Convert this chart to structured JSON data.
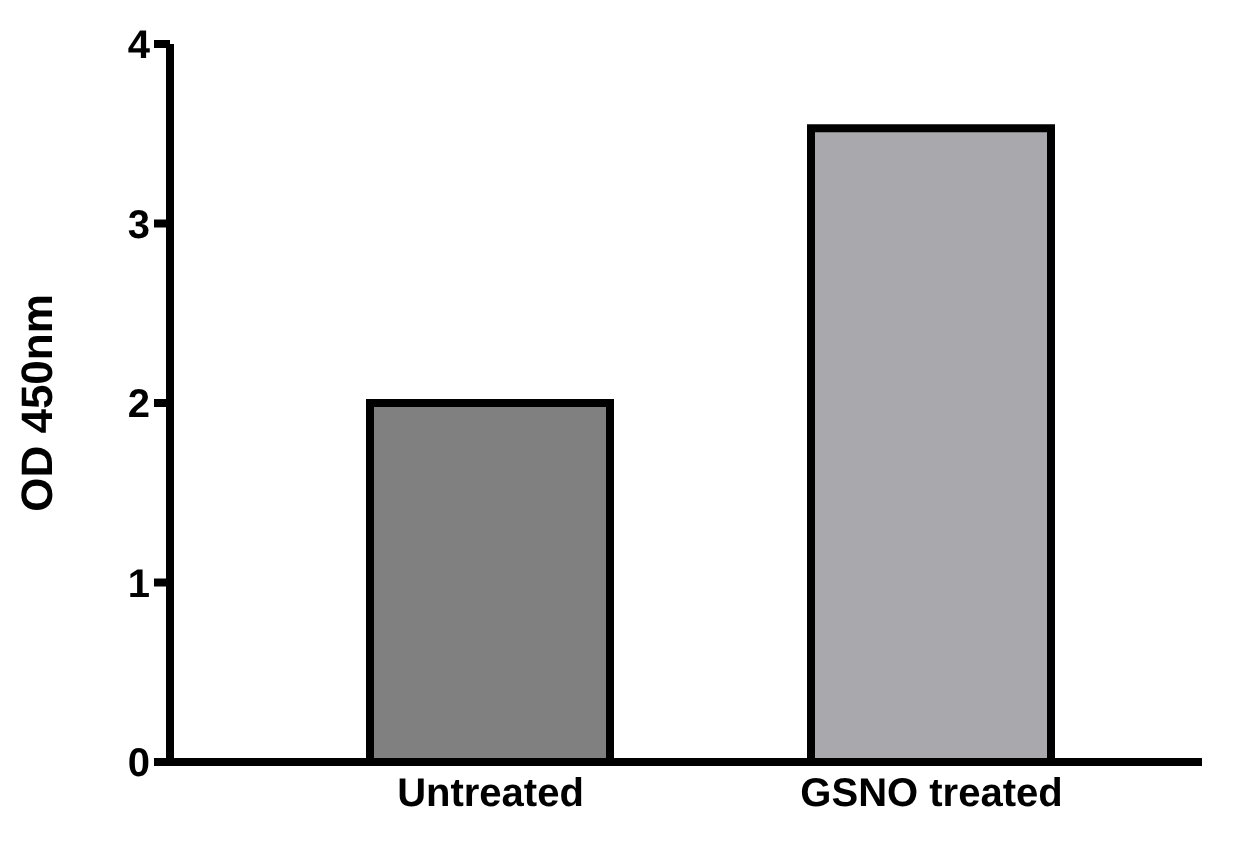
{
  "chart_data": {
    "type": "bar",
    "ylabel": "OD 450nm",
    "categories": [
      "Untreated",
      "GSNO treated"
    ],
    "values": [
      2.0,
      3.53
    ],
    "colors": [
      "#808080",
      "#a9a8ad"
    ],
    "ylim": [
      0,
      4
    ],
    "yticks": [
      0,
      1,
      2,
      3,
      4
    ],
    "grid": false,
    "legend": false
  }
}
